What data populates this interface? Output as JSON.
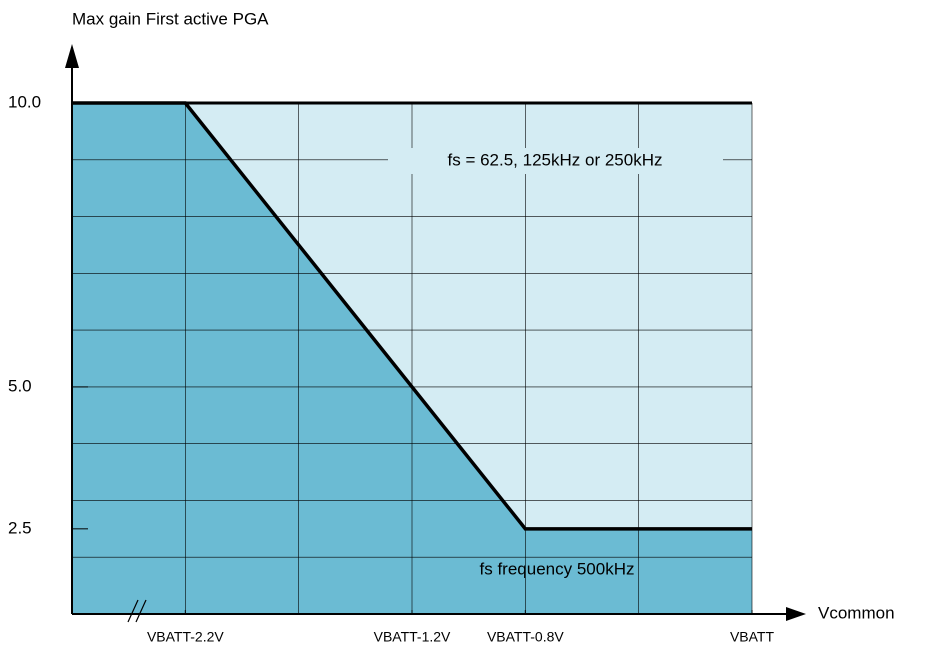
{
  "chart_data": {
    "type": "line",
    "y_axis_label": "Max gain First active PGA",
    "x_axis_label": "Vcommon",
    "x": [
      0,
      1,
      4,
      6
    ],
    "series": [
      {
        "color": "#000000",
        "values": [
          10,
          10,
          2.5,
          2.5
        ]
      }
    ],
    "xlim": [
      0,
      6
    ],
    "xticks": [
      {
        "value": 1,
        "label": "VBATT-2.2V"
      },
      {
        "value": 3,
        "label": "VBATT-1.2V"
      },
      {
        "value": 4,
        "label": "VBATT-0.8V"
      },
      {
        "value": 6,
        "label": "VBATT"
      }
    ],
    "ylim": [
      1,
      10
    ],
    "yticks": [
      {
        "value": 10,
        "label": "10.0"
      },
      {
        "value": 5,
        "label": "5.0"
      },
      {
        "value": 2.5,
        "label": "2.5"
      }
    ],
    "xgrid": [
      0,
      1,
      2,
      3,
      4,
      5,
      6
    ],
    "ygrid": [
      1,
      2,
      3,
      4,
      5,
      6,
      7,
      8,
      9,
      10
    ],
    "fill_above": "#d4ecf3",
    "fill_below": "#6bbbd3",
    "annotations": [
      "fs = 62.5, 125kHz or 250kHz",
      "fs frequency 500kHz"
    ]
  }
}
